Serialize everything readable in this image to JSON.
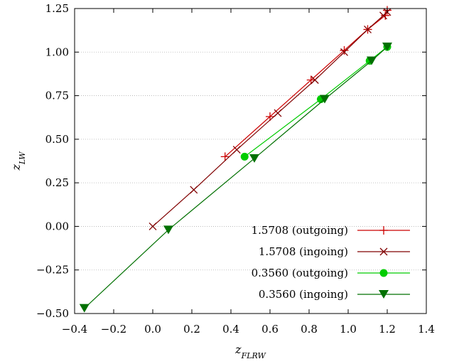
{
  "chart_data": {
    "type": "line",
    "title": "",
    "xlabel": "z_FLRW",
    "ylabel": "z_LW",
    "xlim": [
      -0.4,
      1.4
    ],
    "ylim": [
      -0.5,
      1.25
    ],
    "xticks": [
      -0.4,
      -0.2,
      0.0,
      0.2,
      0.4,
      0.6,
      0.8,
      1.0,
      1.2,
      1.4
    ],
    "yticks": [
      -0.5,
      -0.25,
      0.0,
      0.25,
      0.5,
      0.75,
      1.0,
      1.25
    ],
    "xtick_labels": [
      "−0.4",
      "−0.2",
      "0.0",
      "0.2",
      "0.4",
      "0.6",
      "0.8",
      "1.0",
      "1.2",
      "1.4"
    ],
    "ytick_labels": [
      "−0.50",
      "−0.25",
      "0.00",
      "0.25",
      "0.50",
      "0.75",
      "1.00",
      "1.25"
    ],
    "grid": true,
    "legend_position": "bottom-right",
    "series": [
      {
        "name": "1.5708 (outgoing)",
        "color": "#cc0000",
        "marker": "plus",
        "x": [
          0.37,
          0.6,
          0.81,
          0.98,
          1.1,
          1.19,
          1.2
        ],
        "y": [
          0.4,
          0.63,
          0.84,
          1.01,
          1.13,
          1.21,
          1.24
        ]
      },
      {
        "name": "1.5708 (ingoing)",
        "color": "#800000",
        "marker": "cross",
        "x": [
          0.0,
          0.21,
          0.43,
          0.64,
          0.83,
          0.98,
          1.1,
          1.18,
          1.2
        ],
        "y": [
          0.0,
          0.21,
          0.44,
          0.65,
          0.84,
          1.0,
          1.13,
          1.21,
          1.23
        ]
      },
      {
        "name": "0.3560 (outgoing)",
        "color": "#00cc00",
        "marker": "circle",
        "x": [
          0.47,
          0.86,
          1.11,
          1.2
        ],
        "y": [
          0.4,
          0.73,
          0.95,
          1.03
        ]
      },
      {
        "name": "0.3560 (ingoing)",
        "color": "#007000",
        "marker": "triangle-down",
        "x": [
          -0.35,
          0.08,
          0.52,
          0.88,
          1.12,
          1.2
        ],
        "y": [
          -0.47,
          -0.02,
          0.39,
          0.73,
          0.95,
          1.03
        ]
      }
    ]
  }
}
